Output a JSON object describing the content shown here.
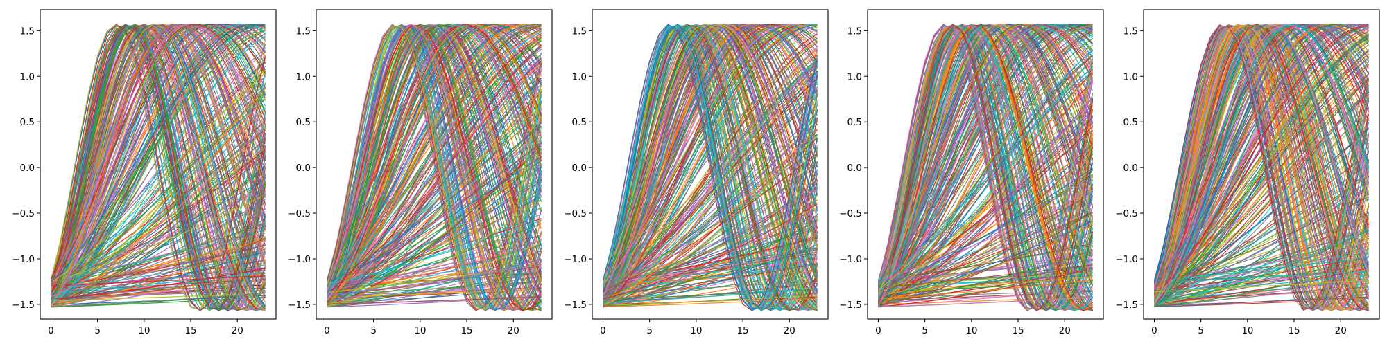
{
  "chart_data": [
    {
      "type": "line",
      "panel": "panel 1",
      "xlim": [
        -1.15,
        24.15
      ],
      "ylim": [
        -1.66,
        1.73
      ],
      "xticks": [
        0,
        5,
        10,
        15,
        20
      ],
      "xtick_labels": [
        "0",
        "5",
        "10",
        "15",
        "20"
      ],
      "yticks": [
        -1.5,
        -1.0,
        -0.5,
        0.0,
        0.5,
        1.0,
        1.5
      ],
      "ytick_labels": [
        "−1.5",
        "−1.0",
        "−0.5",
        "0.0",
        "0.5",
        "1.0",
        "1.5"
      ],
      "x": [
        0,
        1,
        2,
        3,
        4,
        5,
        6,
        7,
        8,
        9,
        10,
        11,
        12,
        13,
        14,
        15,
        16,
        17,
        18,
        19,
        20,
        21,
        22,
        23
      ],
      "series_note": "hundreds of overlapping series; each starts near y=-1.5 to -1.25 at x=0 and rises at a different rate toward y≈1.57",
      "start_range": [
        -1.53,
        -1.22
      ],
      "end_range": [
        -1.5,
        1.6
      ],
      "grid": false,
      "legend": "none"
    },
    {
      "type": "line",
      "panel": "panel 2",
      "xlim": [
        -1.15,
        24.15
      ],
      "ylim": [
        -1.66,
        1.73
      ],
      "xticks": [
        0,
        5,
        10,
        15,
        20
      ],
      "xtick_labels": [
        "0",
        "5",
        "10",
        "15",
        "20"
      ],
      "yticks": [
        -1.5,
        -1.0,
        -0.5,
        0.0,
        0.5,
        1.0,
        1.5
      ],
      "ytick_labels": [
        "−1.5",
        "−1.0",
        "−0.5",
        "0.0",
        "0.5",
        "1.0",
        "1.5"
      ],
      "x": [
        0,
        1,
        2,
        3,
        4,
        5,
        6,
        7,
        8,
        9,
        10,
        11,
        12,
        13,
        14,
        15,
        16,
        17,
        18,
        19,
        20,
        21,
        22,
        23
      ],
      "series_note": "hundreds of overlapping series rising from about -1.5 toward about 1.57",
      "start_range": [
        -1.55,
        -1.25
      ],
      "end_range": [
        -1.52,
        1.58
      ],
      "grid": false,
      "legend": "none"
    },
    {
      "type": "line",
      "panel": "panel 3",
      "xlim": [
        -1.15,
        24.15
      ],
      "ylim": [
        -1.66,
        1.73
      ],
      "xticks": [
        0,
        5,
        10,
        15,
        20
      ],
      "xtick_labels": [
        "0",
        "5",
        "10",
        "15",
        "20"
      ],
      "yticks": [
        -1.5,
        -1.0,
        -0.5,
        0.0,
        0.5,
        1.0,
        1.5
      ],
      "ytick_labels": [
        "−1.5",
        "−1.0",
        "−0.5",
        "0.0",
        "0.5",
        "1.0",
        "1.5"
      ],
      "x": [
        0,
        1,
        2,
        3,
        4,
        5,
        6,
        7,
        8,
        9,
        10,
        11,
        12,
        13,
        14,
        15,
        16,
        17,
        18,
        19,
        20,
        21,
        22,
        23
      ],
      "series_note": "hundreds of overlapping series rising from about -1.55 toward about 1.57",
      "start_range": [
        -1.56,
        -1.25
      ],
      "end_range": [
        -1.55,
        1.57
      ],
      "grid": false,
      "legend": "none"
    },
    {
      "type": "line",
      "panel": "panel 4",
      "xlim": [
        -1.15,
        24.15
      ],
      "ylim": [
        -1.66,
        1.73
      ],
      "xticks": [
        0,
        5,
        10,
        15,
        20
      ],
      "xtick_labels": [
        "0",
        "5",
        "10",
        "15",
        "20"
      ],
      "yticks": [
        -1.5,
        -1.0,
        -0.5,
        0.0,
        0.5,
        1.0,
        1.5
      ],
      "ytick_labels": [
        "−1.5",
        "−1.0",
        "−0.5",
        "0.0",
        "0.5",
        "1.0",
        "1.5"
      ],
      "x": [
        0,
        1,
        2,
        3,
        4,
        5,
        6,
        7,
        8,
        9,
        10,
        11,
        12,
        13,
        14,
        15,
        16,
        17,
        18,
        19,
        20,
        21,
        22,
        23
      ],
      "series_note": "hundreds of overlapping series rising from about -1.55 toward about 1.57",
      "start_range": [
        -1.56,
        -1.25
      ],
      "end_range": [
        -1.52,
        1.57
      ],
      "grid": false,
      "legend": "none"
    },
    {
      "type": "line",
      "panel": "panel 5",
      "xlim": [
        -1.15,
        24.15
      ],
      "ylim": [
        -1.66,
        1.73
      ],
      "xticks": [
        0,
        5,
        10,
        15,
        20
      ],
      "xtick_labels": [
        "0",
        "5",
        "10",
        "15",
        "20"
      ],
      "yticks": [
        -1.5,
        -1.0,
        -0.5,
        0.0,
        0.5,
        1.0,
        1.5
      ],
      "ytick_labels": [
        "−1.5",
        "−1.0",
        "−0.5",
        "0.0",
        "0.5",
        "1.0",
        "1.5"
      ],
      "x": [
        0,
        1,
        2,
        3,
        4,
        5,
        6,
        7,
        8,
        9,
        10,
        11,
        12,
        13,
        14,
        15,
        16,
        17,
        18,
        19,
        20,
        21,
        22,
        23
      ],
      "series_note": "hundreds of overlapping series rising from about -1.55 toward about 1.57",
      "start_range": [
        -1.56,
        -1.25
      ],
      "end_range": [
        -1.53,
        1.57
      ],
      "grid": false,
      "legend": "none"
    }
  ],
  "colors": [
    "#1f77b4",
    "#ff7f0e",
    "#2ca02c",
    "#d62728",
    "#9467bd",
    "#8c564b",
    "#e377c2",
    "#7f7f7f",
    "#bcbd22",
    "#17becf"
  ]
}
